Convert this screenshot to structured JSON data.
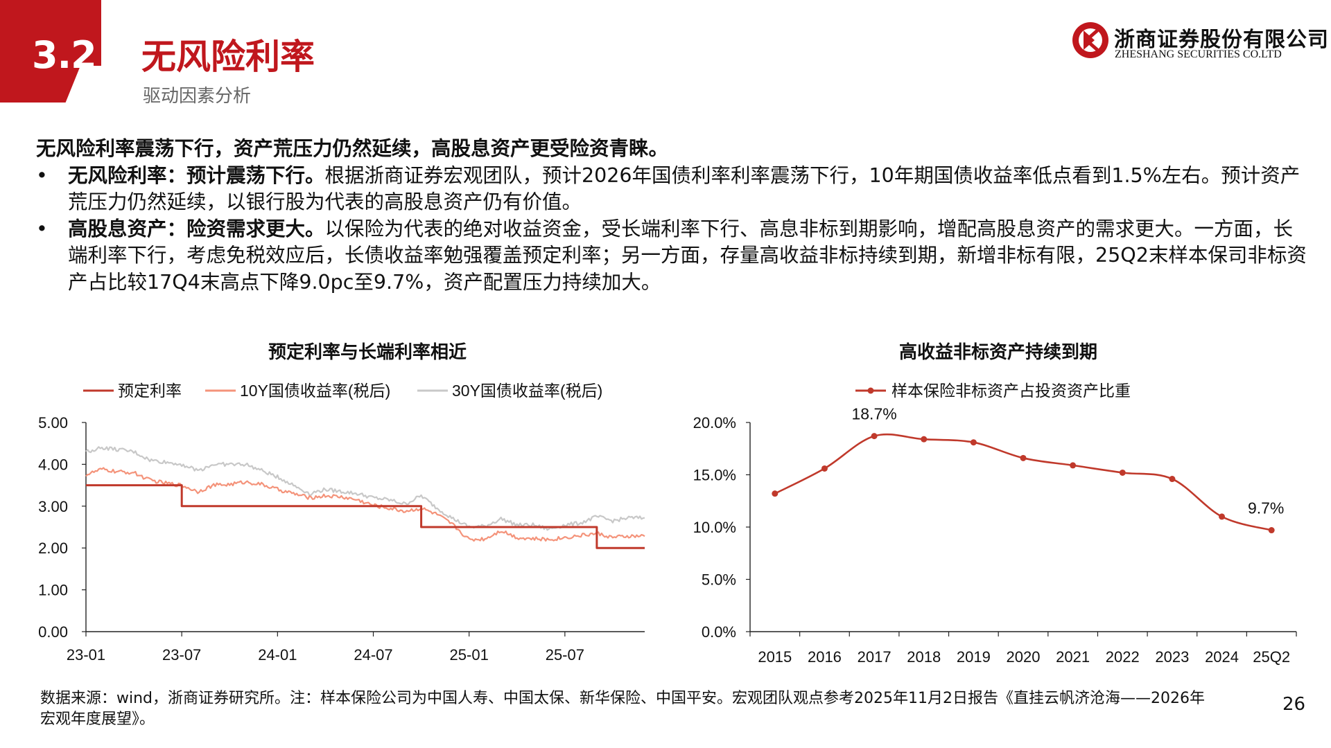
{
  "header": {
    "section_number": "3.2",
    "section_title": "无风险利率",
    "section_subtitle": "驱动因素分析",
    "company_cn": "浙商证券股份有限公司",
    "company_en": "ZHESHANG SECURITIES CO.LTD",
    "brand_color": "#c0171d"
  },
  "body": {
    "lead": "无风险利率震荡下行，资产荒压力仍然延续，高股息资产更受险资青睐。",
    "bullets": [
      {
        "marker": "•",
        "bold": "无风险利率：预计震荡下行。",
        "text": "根据浙商证券宏观团队，预计2026年国债利率利率震荡下行，10年期国债收益率低点看到1.5%左右。预计资产荒压力仍然延续，以银行股为代表的高股息资产仍有价值。"
      },
      {
        "marker": "•",
        "bold": "高股息资产：险资需求更大。",
        "text": "以保险为代表的绝对收益资金，受长端利率下行、高息非标到期影响，增配高股息资产的需求更大。一方面，长端利率下行，考虑免税效应后，长债收益率勉强覆盖预定利率；另一方面，存量高收益非标持续到期，新增非标有限，25Q2末样本保司非标资产占比较17Q4末高点下降9.0pc至9.7%，资产配置压力持续加大。"
      }
    ]
  },
  "chart_data": [
    {
      "type": "line",
      "title": "预定利率与长端利率相近",
      "x_ticks": [
        "23-01",
        "23-07",
        "24-01",
        "24-07",
        "25-01",
        "25-07"
      ],
      "y_ticks": [
        "5.00",
        "4.00",
        "3.00",
        "2.00",
        "1.00",
        "0.00"
      ],
      "ylim": [
        0,
        5
      ],
      "xlim": [
        "2023-01",
        "2025-12"
      ],
      "grid": false,
      "legend_position": "top",
      "series": [
        {
          "name": "预定利率",
          "color": "#c0392b",
          "x": [
            "2023-01",
            "2023-07",
            "2023-07",
            "2024-10",
            "2024-10",
            "2025-09",
            "2025-09",
            "2025-12"
          ],
          "values": [
            3.5,
            3.5,
            3.0,
            3.0,
            2.5,
            2.5,
            2.0,
            2.0
          ]
        },
        {
          "name": "10Y国债收益率(税后)",
          "color": "#f4937a",
          "x": [
            "2023-01",
            "2023-02",
            "2023-03",
            "2023-04",
            "2023-05",
            "2023-06",
            "2023-07",
            "2023-08",
            "2023-09",
            "2023-10",
            "2023-11",
            "2023-12",
            "2024-01",
            "2024-02",
            "2024-03",
            "2024-04",
            "2024-05",
            "2024-06",
            "2024-07",
            "2024-08",
            "2024-09",
            "2024-10",
            "2024-11",
            "2024-12",
            "2025-01",
            "2025-02",
            "2025-03",
            "2025-04",
            "2025-05",
            "2025-06",
            "2025-07",
            "2025-08",
            "2025-09",
            "2025-10",
            "2025-11",
            "2025-12"
          ],
          "values": [
            3.75,
            3.88,
            3.82,
            3.8,
            3.62,
            3.55,
            3.5,
            3.35,
            3.5,
            3.52,
            3.58,
            3.52,
            3.4,
            3.3,
            3.2,
            3.25,
            3.22,
            3.15,
            3.02,
            2.95,
            2.88,
            2.95,
            2.8,
            2.55,
            2.2,
            2.22,
            2.42,
            2.25,
            2.22,
            2.2,
            2.25,
            2.3,
            2.35,
            2.25,
            2.28,
            2.28
          ]
        },
        {
          "name": "30Y国债收益率(税后)",
          "color": "#c8c8c8",
          "x": [
            "2023-01",
            "2023-02",
            "2023-03",
            "2023-04",
            "2023-05",
            "2023-06",
            "2023-07",
            "2023-08",
            "2023-09",
            "2023-10",
            "2023-11",
            "2023-12",
            "2024-01",
            "2024-02",
            "2024-03",
            "2024-04",
            "2024-05",
            "2024-06",
            "2024-07",
            "2024-08",
            "2024-09",
            "2024-10",
            "2024-11",
            "2024-12",
            "2025-01",
            "2025-02",
            "2025-03",
            "2025-04",
            "2025-05",
            "2025-06",
            "2025-07",
            "2025-08",
            "2025-09",
            "2025-10",
            "2025-11",
            "2025-12"
          ],
          "values": [
            4.3,
            4.4,
            4.35,
            4.3,
            4.1,
            4.05,
            4.0,
            3.85,
            4.0,
            4.0,
            4.0,
            3.85,
            3.7,
            3.5,
            3.3,
            3.4,
            3.35,
            3.3,
            3.2,
            3.15,
            3.05,
            3.25,
            2.95,
            2.7,
            2.5,
            2.52,
            2.7,
            2.55,
            2.55,
            2.45,
            2.55,
            2.6,
            2.75,
            2.65,
            2.72,
            2.72
          ]
        }
      ]
    },
    {
      "type": "line",
      "title": "高收益非标资产持续到期",
      "categories": [
        "2015",
        "2016",
        "2017",
        "2018",
        "2019",
        "2020",
        "2021",
        "2022",
        "2023",
        "2024",
        "25Q2"
      ],
      "y_ticks": [
        "20.0%",
        "15.0%",
        "10.0%",
        "5.0%",
        "0.0%"
      ],
      "ylim": [
        0,
        20
      ],
      "grid": false,
      "legend_position": "top",
      "series": [
        {
          "name": "样本保险非标资产占投资资产比重",
          "color": "#c0392b",
          "values": [
            13.2,
            15.6,
            18.7,
            18.4,
            18.1,
            16.6,
            15.9,
            15.2,
            14.6,
            11.0,
            9.7
          ]
        }
      ],
      "annotations": [
        {
          "category": "2017",
          "text": "18.7%"
        },
        {
          "category": "25Q2",
          "text": "9.7%"
        }
      ]
    }
  ],
  "footer": {
    "note": "数据来源：wind，浙商证券研究所。注：样本保险公司为中国人寿、中国太保、新华保险、中国平安。宏观团队观点参考2025年11月2日报告《直挂云帆济沧海——2026年宏观年度展望》。",
    "page_number": "26"
  }
}
